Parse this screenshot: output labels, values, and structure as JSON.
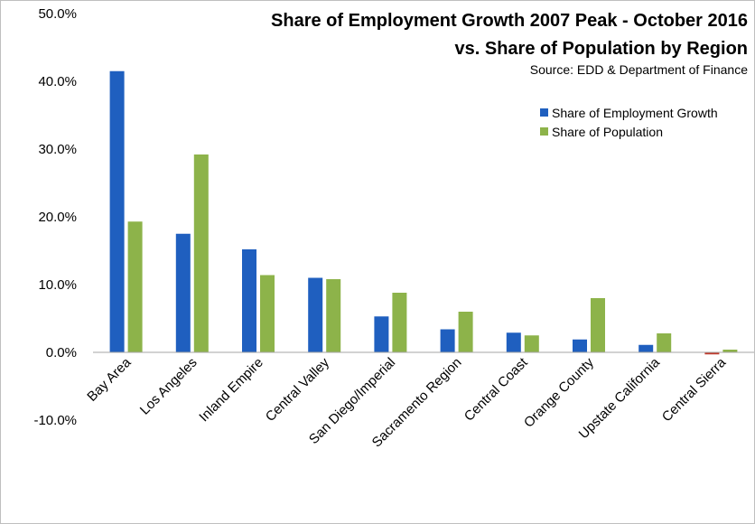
{
  "chart_data": {
    "type": "bar",
    "title_line1": "Share of Employment Growth 2007 Peak - October 2016",
    "title_line2": "vs. Share of Population by Region",
    "source": "Source:  EDD & Department of Finance",
    "xlabel": "",
    "ylabel": "",
    "ylim": [
      -10,
      50
    ],
    "yticks": [
      "50.0%",
      "40.0%",
      "30.0%",
      "20.0%",
      "10.0%",
      "0.0%",
      "-10.0%"
    ],
    "grid": false,
    "legend_position": "right",
    "categories": [
      "Bay Area",
      "Los Angeles",
      "Inland Empire",
      "Central Valley",
      "San Diego/Imperial",
      "Sacramento Region",
      "Central Coast",
      "Orange County",
      "Upstate California",
      "Central Sierra"
    ],
    "series": [
      {
        "name": "Share of Employment Growth",
        "color": "#1f5fbf",
        "negative_color": "#c0392b",
        "values": [
          41.5,
          17.5,
          15.2,
          11.0,
          5.3,
          3.4,
          2.9,
          1.9,
          1.1,
          -0.3
        ]
      },
      {
        "name": "Share of Population",
        "color": "#8db34a",
        "values": [
          19.3,
          29.2,
          11.4,
          10.8,
          8.8,
          6.0,
          2.5,
          8.0,
          2.8,
          0.4
        ]
      }
    ]
  }
}
